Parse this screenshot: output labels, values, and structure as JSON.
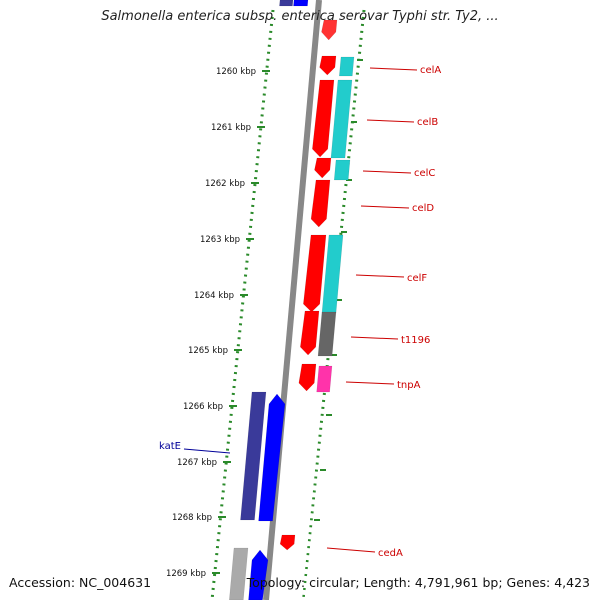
{
  "title": "Salmonella enterica subsp. enterica serovar Typhi str. Ty2, ...",
  "footer": {
    "accession": "Accession: NC_004631",
    "summary": "Topology: circular; Length: 4,791,961 bp; Genes: 4,423"
  },
  "scale_ticks": [
    "1260 kbp",
    "1261 kbp",
    "1262 kbp",
    "1263 kbp",
    "1264 kbp",
    "1265 kbp",
    "1266 kbp",
    "1267 kbp",
    "1268 kbp",
    "1269 kbp"
  ],
  "genes": [
    {
      "label": "celA",
      "color": "#cc0000"
    },
    {
      "label": "celB",
      "color": "#cc0000"
    },
    {
      "label": "celC",
      "color": "#cc0000"
    },
    {
      "label": "celD",
      "color": "#cc0000"
    },
    {
      "label": "celF",
      "color": "#cc0000"
    },
    {
      "label": "t1196",
      "color": "#cc0000"
    },
    {
      "label": "tnpA",
      "color": "#cc0000"
    },
    {
      "label": "katE",
      "color": "#000099"
    },
    {
      "label": "cedA",
      "color": "#cc0000"
    }
  ],
  "colors": {
    "forward_cds": "#ff0000",
    "cog_cyan": "#22cccc",
    "cog_gray": "#666666",
    "cog_pink": "#ff33aa",
    "reverse_cds": "#0000ff",
    "cog_navy": "#3a3a9a",
    "backbone": "#888888",
    "gc_dots": "#2a8a2a"
  }
}
